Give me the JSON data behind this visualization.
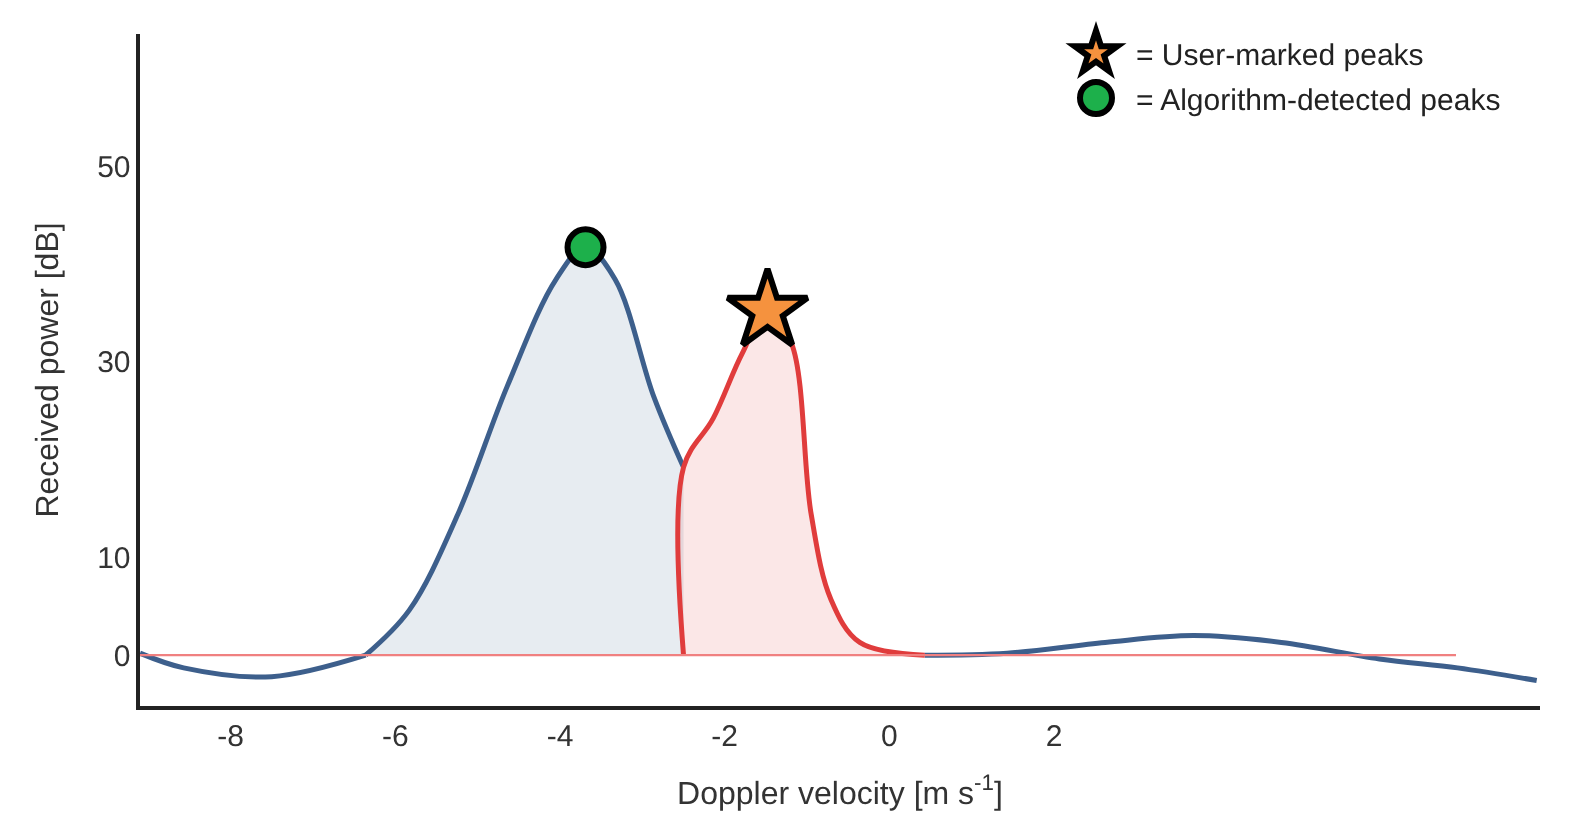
{
  "chart_data": {
    "type": "line",
    "xlabel": "Doppler velocity [m s$^{-1}$]",
    "ylabel": "Received power [dB]",
    "xlim": [
      -9.1,
      7.9
    ],
    "xticks": [
      -8,
      -6,
      -4,
      -2,
      0,
      2
    ],
    "ylim": [
      -5.2,
      63.5
    ],
    "yticks": [
      0,
      10,
      30,
      50
    ],
    "legend": "top right",
    "marker": "none",
    "line_style": "solid",
    "ref_lines": [
      {
        "axis": "y",
        "value": 0,
        "color": "#f08080"
      }
    ],
    "series": [
      {
        "color": "#3d5f8c",
        "x": [
          -9.1,
          -8.57,
          -7.5,
          -6.36
        ],
        "values": [
          0.2,
          -1.3,
          -2.2,
          0
        ]
      },
      {
        "type": "area",
        "color": "#3d5f8c",
        "x": [
          -6.36,
          -5.83,
          -5.24,
          -4.64,
          -4.05,
          -3.69,
          -3.33,
          -2.86,
          -2.5
        ],
        "values": [
          0,
          4.6,
          14.4,
          27.5,
          38.4,
          41.7,
          38.4,
          26.4,
          19.2
        ]
      },
      {
        "type": "area",
        "color": "#e03c3c",
        "x": [
          -2.5,
          -2.5,
          -2.14,
          -1.79,
          -1.48,
          -1.19,
          -0.95,
          -0.71,
          -0.36,
          0.43
        ],
        "values": [
          0,
          19.2,
          24.2,
          30.8,
          35.2,
          31.9,
          14.4,
          5.7,
          1.3,
          0
        ]
      },
      {
        "color": "#3d5f8c",
        "x": [
          0.43,
          1.43,
          2.62,
          3.69,
          4.76,
          5.95,
          6.9,
          7.86
        ],
        "values": [
          0,
          0.2,
          1.3,
          2.0,
          1.3,
          -0.4,
          -1.3,
          -2.6
        ]
      },
      {
        "type": "scatter",
        "name": "= User-marked peaks",
        "color": "#f5923e",
        "marker": "star",
        "x": [
          -1.48
        ],
        "values": [
          35.2
        ]
      },
      {
        "type": "scatter",
        "name": "= Algorithm-detected peaks",
        "color": "#1db04b",
        "marker": "circle",
        "x": [
          -3.69
        ],
        "values": [
          41.7
        ]
      }
    ]
  }
}
